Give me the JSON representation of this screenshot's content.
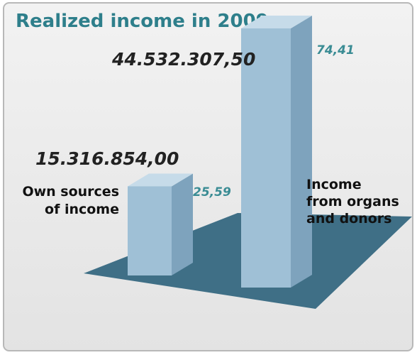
{
  "chart_data": {
    "type": "bar",
    "title": "Realized income in 2009",
    "categories": [
      "Own sources\nof income",
      "Income\nfrom  organs\nand donors"
    ],
    "values": [
      15316854.0,
      44532307.5
    ],
    "value_labels": [
      "15.316.854,00",
      "44.532.307,50"
    ],
    "percent_values": [
      25.59,
      74.41
    ],
    "percent_labels": [
      "25,59",
      "74,41"
    ],
    "category_lines": [
      [
        "Own sources",
        "of income"
      ],
      [
        "Income",
        "from  organs",
        "and donors"
      ]
    ],
    "xlabel": "",
    "ylabel": "",
    "ylim": [
      0,
      44532307.5
    ],
    "grid": false,
    "legend": "none"
  },
  "colors": {
    "title": "#2e7f8b",
    "percent_label": "#3a8c94",
    "bar_front": "#9fc0d6",
    "bar_side": "#7ea3bd",
    "bar_top": "#c6dbe9",
    "floor": "#3f6f86",
    "panel_border": "#b8b8b8",
    "panel_bg_top": "#f2f2f2",
    "panel_bg_bottom": "#e3e3e3",
    "value_label": "#222222",
    "category_label": "#111111"
  }
}
